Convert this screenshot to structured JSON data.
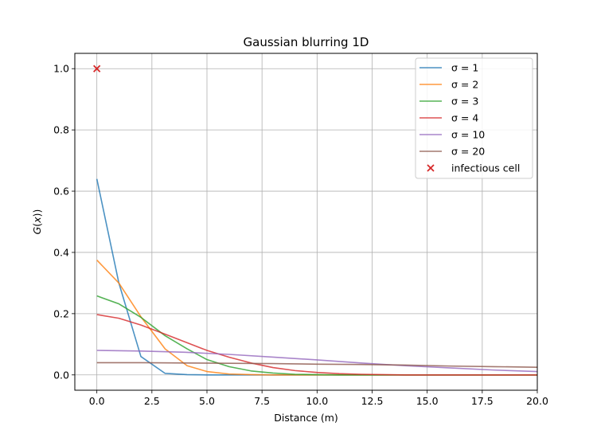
{
  "chart_data": {
    "type": "line",
    "title": "Gaussian blurring 1D",
    "xlabel": "Distance (m)",
    "ylabel": "G(x))",
    "xlim": [
      -1,
      20
    ],
    "ylim": [
      -0.05,
      1.05
    ],
    "xticks": [
      0,
      2.5,
      5,
      7.5,
      10,
      12.5,
      15,
      17.5,
      20
    ],
    "xtick_labels": [
      "0.0",
      "2.5",
      "5.0",
      "7.5",
      "10.0",
      "12.5",
      "15.0",
      "17.5",
      "20.0"
    ],
    "yticks": [
      0,
      0.2,
      0.4,
      0.6,
      0.8,
      1.0
    ],
    "ytick_labels": [
      "0.0",
      "0.2",
      "0.4",
      "0.6",
      "0.8",
      "1.0"
    ],
    "grid": true,
    "legend_position": "top-right",
    "series": [
      {
        "name": "σ = 1",
        "color": "#1f77b4",
        "points": [
          [
            0,
            0.64
          ],
          [
            1,
            0.3
          ],
          [
            2,
            0.06
          ],
          [
            3.1,
            0.005
          ],
          [
            4.1,
            0.001
          ],
          [
            5,
            0.0
          ],
          [
            20,
            0.0
          ]
        ]
      },
      {
        "name": "σ = 2",
        "color": "#ff7f0e",
        "points": [
          [
            0,
            0.375
          ],
          [
            1,
            0.3
          ],
          [
            2,
            0.19
          ],
          [
            3.1,
            0.085
          ],
          [
            4.1,
            0.03
          ],
          [
            5,
            0.011
          ],
          [
            6,
            0.003
          ],
          [
            7,
            0.001
          ],
          [
            8,
            0.0
          ],
          [
            20,
            0.0
          ]
        ]
      },
      {
        "name": "σ = 3",
        "color": "#2ca02c",
        "points": [
          [
            0,
            0.258
          ],
          [
            1,
            0.232
          ],
          [
            2,
            0.188
          ],
          [
            3.1,
            0.128
          ],
          [
            4.1,
            0.085
          ],
          [
            5,
            0.05
          ],
          [
            6,
            0.027
          ],
          [
            7,
            0.013
          ],
          [
            8,
            0.006
          ],
          [
            9,
            0.002
          ],
          [
            10,
            0.001
          ],
          [
            11,
            0.0
          ],
          [
            20,
            0.0
          ]
        ]
      },
      {
        "name": "σ = 4",
        "color": "#d62728",
        "points": [
          [
            0,
            0.197
          ],
          [
            1,
            0.185
          ],
          [
            2,
            0.163
          ],
          [
            3.1,
            0.133
          ],
          [
            4.1,
            0.105
          ],
          [
            5,
            0.08
          ],
          [
            6,
            0.058
          ],
          [
            7,
            0.039
          ],
          [
            8,
            0.024
          ],
          [
            9,
            0.014
          ],
          [
            10,
            0.008
          ],
          [
            11,
            0.004
          ],
          [
            12,
            0.002
          ],
          [
            13,
            0.001
          ],
          [
            14,
            0.0
          ],
          [
            20,
            0.0
          ]
        ]
      },
      {
        "name": "σ = 10",
        "color": "#9467bd",
        "points": [
          [
            0,
            0.08
          ],
          [
            2,
            0.078
          ],
          [
            4,
            0.074
          ],
          [
            6,
            0.067
          ],
          [
            8,
            0.058
          ],
          [
            10,
            0.049
          ],
          [
            12,
            0.039
          ],
          [
            14,
            0.03
          ],
          [
            16,
            0.023
          ],
          [
            18,
            0.016
          ],
          [
            20,
            0.011
          ]
        ]
      },
      {
        "name": "σ = 20",
        "color": "#8c564b",
        "points": [
          [
            0,
            0.04
          ],
          [
            2,
            0.04
          ],
          [
            4,
            0.039
          ],
          [
            6,
            0.038
          ],
          [
            8,
            0.037
          ],
          [
            10,
            0.035
          ],
          [
            12,
            0.034
          ],
          [
            14,
            0.032
          ],
          [
            16,
            0.029
          ],
          [
            18,
            0.027
          ],
          [
            20,
            0.025
          ]
        ]
      }
    ],
    "markers": [
      {
        "name": "infectious cell",
        "color": "#d62728",
        "symbol": "x",
        "points": [
          [
            0,
            1.0
          ]
        ]
      }
    ]
  }
}
